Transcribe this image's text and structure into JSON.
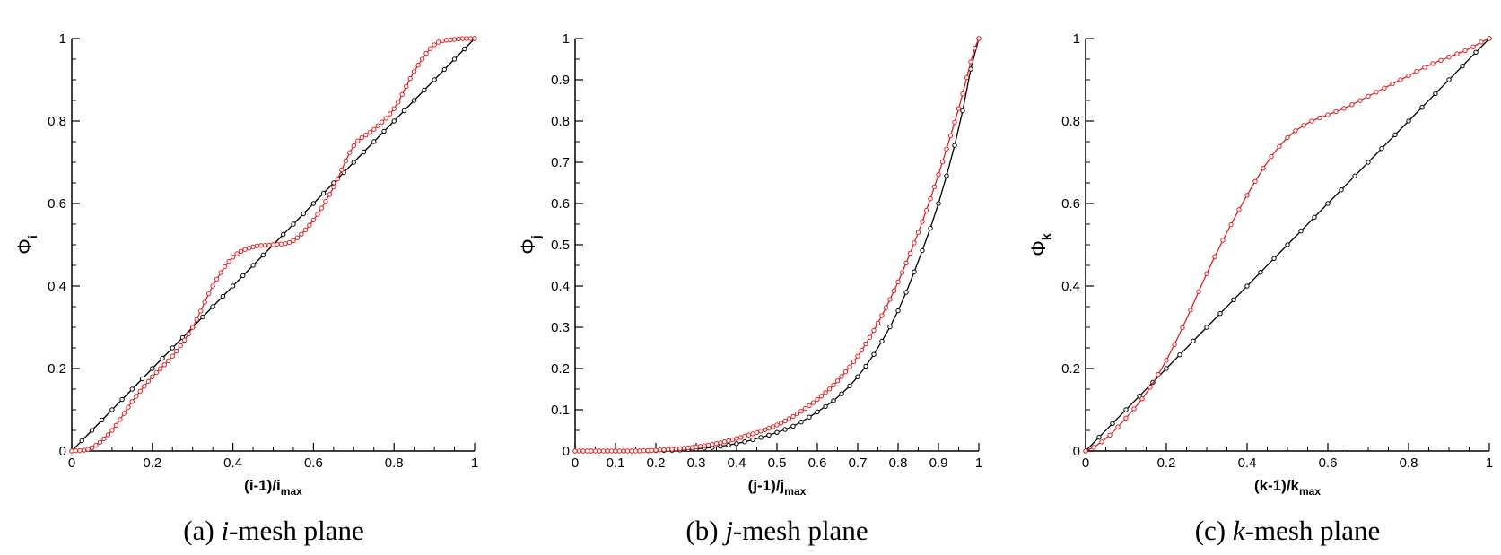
{
  "chart_data": [
    {
      "type": "line",
      "xlabel": {
        "main": "(i-1)/i",
        "sub": "max"
      },
      "ylabel": {
        "main": "Φ",
        "sub": "i"
      },
      "caption": {
        "prefix": "(a)",
        "var": "i",
        "text": "-mesh plane"
      },
      "xlim": [
        0,
        1
      ],
      "ylim": [
        0,
        1
      ],
      "xticks": [
        0,
        0.2,
        0.4,
        0.6,
        0.8,
        1
      ],
      "xtick_labels": [
        "0",
        "0.2",
        "0.4",
        "0.6",
        "0.8",
        "1"
      ],
      "yticks": [
        0,
        0.2,
        0.4,
        0.6,
        0.8,
        1
      ],
      "ytick_labels": [
        "0",
        "0.2",
        "0.4",
        "0.6",
        "0.8",
        "1"
      ],
      "series": [
        {
          "color": "#000000",
          "points": 41,
          "x": [
            0,
            1
          ],
          "y": [
            0,
            1
          ]
        },
        {
          "color": "#e02020",
          "points": 101,
          "x": [
            0,
            0.05,
            0.1,
            0.15,
            0.2,
            0.25,
            0.3,
            0.35,
            0.4,
            0.45,
            0.5,
            0.55,
            0.6,
            0.65,
            0.7,
            0.75,
            0.8,
            0.85,
            0.9,
            0.95,
            1
          ],
          "y": [
            0,
            0.008,
            0.05,
            0.12,
            0.18,
            0.23,
            0.3,
            0.4,
            0.47,
            0.495,
            0.5,
            0.51,
            0.56,
            0.64,
            0.74,
            0.78,
            0.83,
            0.92,
            0.985,
            0.998,
            1
          ]
        }
      ]
    },
    {
      "type": "line",
      "xlabel": {
        "main": "(j-1)/j",
        "sub": "max"
      },
      "ylabel": {
        "main": "Φ",
        "sub": "j"
      },
      "caption": {
        "prefix": "(b)",
        "var": "j",
        "text": "-mesh plane"
      },
      "xlim": [
        0,
        1
      ],
      "ylim": [
        0,
        1
      ],
      "xticks": [
        0,
        0.1,
        0.2,
        0.3,
        0.4,
        0.5,
        0.6,
        0.7,
        0.8,
        0.9,
        1
      ],
      "xtick_labels": [
        "0",
        "0.1",
        "0.2",
        "0.3",
        "0.4",
        "0.5",
        "0.6",
        "0.7",
        "0.8",
        "0.9",
        "1"
      ],
      "yticks": [
        0,
        0.1,
        0.2,
        0.3,
        0.4,
        0.5,
        0.6,
        0.7,
        0.8,
        0.9,
        1
      ],
      "ytick_labels": [
        "0",
        "0.1",
        "0.2",
        "0.3",
        "0.4",
        "0.5",
        "0.6",
        "0.7",
        "0.8",
        "0.9",
        "1"
      ],
      "series": [
        {
          "color": "#000000",
          "points": 51,
          "x": [
            0,
            0.05,
            0.1,
            0.15,
            0.2,
            0.25,
            0.3,
            0.35,
            0.4,
            0.45,
            0.5,
            0.55,
            0.6,
            0.65,
            0.7,
            0.75,
            0.8,
            0.85,
            0.9,
            0.95,
            1
          ],
          "y": [
            0,
            0,
            0,
            0,
            0.001,
            0.002,
            0.005,
            0.01,
            0.018,
            0.03,
            0.045,
            0.065,
            0.095,
            0.13,
            0.18,
            0.25,
            0.34,
            0.46,
            0.6,
            0.78,
            1
          ]
        },
        {
          "color": "#e02020",
          "points": 101,
          "x": [
            0,
            0.05,
            0.1,
            0.15,
            0.2,
            0.25,
            0.3,
            0.35,
            0.4,
            0.45,
            0.5,
            0.55,
            0.6,
            0.65,
            0.7,
            0.75,
            0.8,
            0.85,
            0.9,
            0.95,
            1
          ],
          "y": [
            0,
            0,
            0,
            0,
            0.002,
            0.005,
            0.01,
            0.018,
            0.03,
            0.045,
            0.063,
            0.09,
            0.125,
            0.17,
            0.23,
            0.31,
            0.41,
            0.53,
            0.67,
            0.83,
            1
          ]
        }
      ]
    },
    {
      "type": "line",
      "xlabel": {
        "main": "(k-1)/k",
        "sub": "max"
      },
      "ylabel": {
        "main": "Φ",
        "sub": "k"
      },
      "caption": {
        "prefix": "(c)",
        "var": "k",
        "text": "-mesh plane"
      },
      "xlim": [
        0,
        1
      ],
      "ylim": [
        0,
        1
      ],
      "xticks": [
        0,
        0.2,
        0.4,
        0.6,
        0.8,
        1
      ],
      "xtick_labels": [
        "0",
        "0.2",
        "0.4",
        "0.6",
        "0.8",
        "1"
      ],
      "yticks": [
        0,
        0.2,
        0.4,
        0.6,
        0.8,
        1
      ],
      "ytick_labels": [
        "0",
        "0.2",
        "0.4",
        "0.6",
        "0.8",
        "1"
      ],
      "series": [
        {
          "color": "#000000",
          "points": 31,
          "x": [
            0,
            1
          ],
          "y": [
            0,
            1
          ]
        },
        {
          "color": "#e02020",
          "points": 51,
          "x": [
            0,
            0.05,
            0.1,
            0.15,
            0.2,
            0.25,
            0.3,
            0.35,
            0.4,
            0.45,
            0.5,
            0.55,
            0.6,
            0.65,
            0.7,
            0.75,
            0.8,
            0.85,
            0.9,
            0.95,
            1
          ],
          "y": [
            0,
            0.03,
            0.08,
            0.14,
            0.22,
            0.32,
            0.43,
            0.53,
            0.62,
            0.7,
            0.76,
            0.795,
            0.815,
            0.835,
            0.86,
            0.885,
            0.91,
            0.935,
            0.955,
            0.975,
            1
          ]
        }
      ]
    }
  ]
}
